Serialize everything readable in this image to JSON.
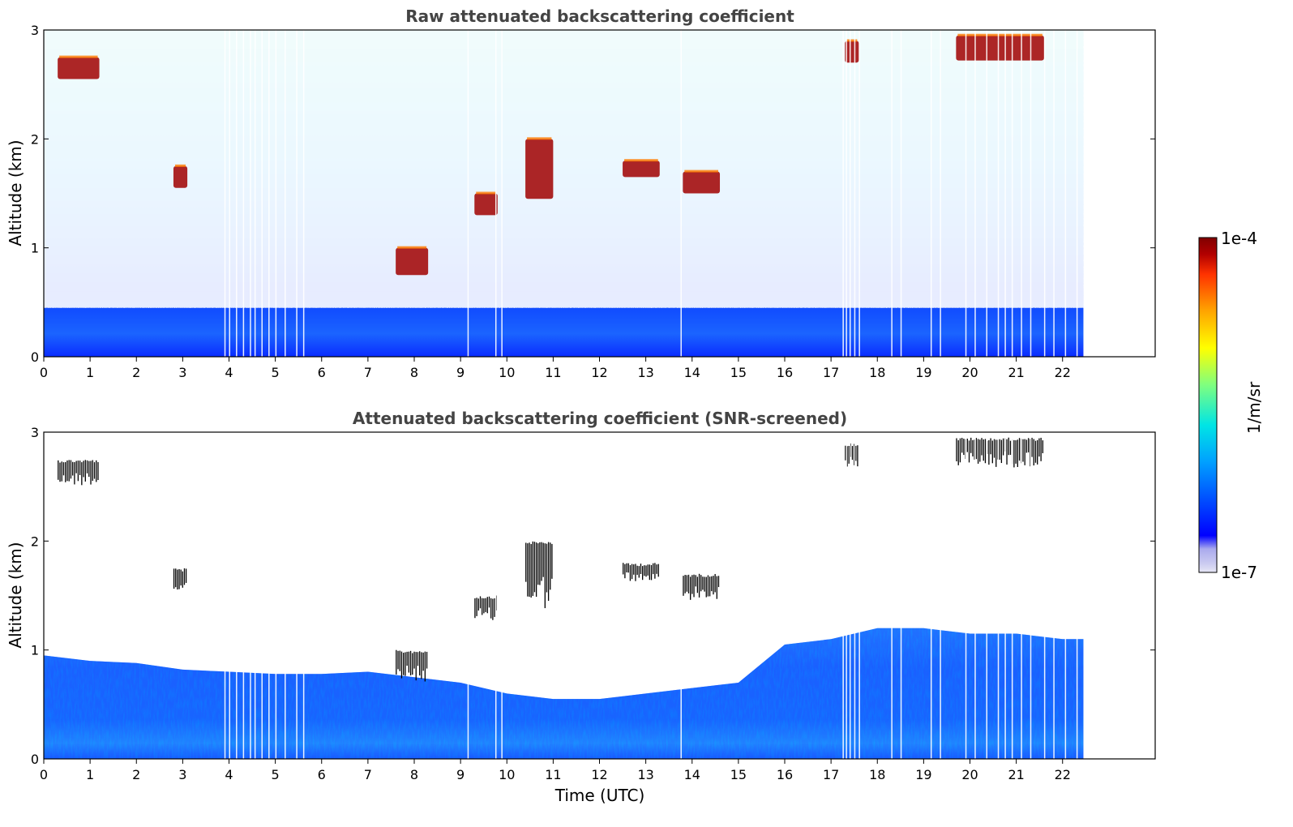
{
  "chart_data": [
    {
      "type": "heatmap",
      "title": "Raw attenuated backscattering coefficient",
      "xlabel": "",
      "ylabel": "Altitude (km)",
      "xlim": [
        0,
        24
      ],
      "ylim": [
        0,
        3
      ],
      "data_end_time": 22.45,
      "x_ticks": [
        "0",
        "1",
        "2",
        "3",
        "4",
        "5",
        "6",
        "7",
        "8",
        "9",
        "10",
        "11",
        "12",
        "13",
        "14",
        "15",
        "16",
        "17",
        "18",
        "19",
        "20",
        "21",
        "22"
      ],
      "y_ticks": [
        "0",
        "1",
        "2",
        "3"
      ],
      "cloud_layers": [
        {
          "t0": 0.3,
          "t1": 1.2,
          "z0": 2.55,
          "z1": 2.75
        },
        {
          "t0": 2.8,
          "t1": 3.1,
          "z0": 1.55,
          "z1": 1.75
        },
        {
          "t0": 7.6,
          "t1": 8.3,
          "z0": 0.75,
          "z1": 1.0
        },
        {
          "t0": 9.3,
          "t1": 9.8,
          "z0": 1.3,
          "z1": 1.5
        },
        {
          "t0": 10.4,
          "t1": 11.0,
          "z0": 1.45,
          "z1": 2.0
        },
        {
          "t0": 12.5,
          "t1": 13.3,
          "z0": 1.65,
          "z1": 1.8
        },
        {
          "t0": 13.8,
          "t1": 14.6,
          "z0": 1.5,
          "z1": 1.7
        },
        {
          "t0": 17.3,
          "t1": 17.6,
          "z0": 2.7,
          "z1": 2.9
        },
        {
          "t0": 19.7,
          "t1": 21.6,
          "z0": 2.72,
          "z1": 2.95
        }
      ]
    },
    {
      "type": "heatmap",
      "title": "Attenuated backscattering coefficient (SNR-screened)",
      "xlabel": "Time (UTC)",
      "ylabel": "Altitude (km)",
      "xlim": [
        0,
        24
      ],
      "ylim": [
        0,
        3
      ],
      "data_end_time": 22.45,
      "x_ticks": [
        "0",
        "1",
        "2",
        "3",
        "4",
        "5",
        "6",
        "7",
        "8",
        "9",
        "10",
        "11",
        "12",
        "13",
        "14",
        "15",
        "16",
        "17",
        "18",
        "19",
        "20",
        "21",
        "22"
      ],
      "y_ticks": [
        "0",
        "1",
        "2",
        "3"
      ],
      "boundary_layer_top_km": [
        {
          "t": 0.0,
          "z": 0.95
        },
        {
          "t": 1.0,
          "z": 0.9
        },
        {
          "t": 2.0,
          "z": 0.88
        },
        {
          "t": 3.0,
          "z": 0.82
        },
        {
          "t": 4.0,
          "z": 0.8
        },
        {
          "t": 5.0,
          "z": 0.78
        },
        {
          "t": 6.0,
          "z": 0.78
        },
        {
          "t": 7.0,
          "z": 0.8
        },
        {
          "t": 8.0,
          "z": 0.75
        },
        {
          "t": 9.0,
          "z": 0.7
        },
        {
          "t": 10.0,
          "z": 0.6
        },
        {
          "t": 11.0,
          "z": 0.55
        },
        {
          "t": 12.0,
          "z": 0.55
        },
        {
          "t": 13.0,
          "z": 0.6
        },
        {
          "t": 14.0,
          "z": 0.65
        },
        {
          "t": 15.0,
          "z": 0.7
        },
        {
          "t": 16.0,
          "z": 1.05
        },
        {
          "t": 17.0,
          "z": 1.1
        },
        {
          "t": 18.0,
          "z": 1.2
        },
        {
          "t": 19.0,
          "z": 1.2
        },
        {
          "t": 20.0,
          "z": 1.15
        },
        {
          "t": 21.0,
          "z": 1.15
        },
        {
          "t": 22.0,
          "z": 1.1
        }
      ]
    }
  ],
  "colorbar": {
    "label": "1/m/sr",
    "max_label": "1e-4",
    "min_label": "1e-7",
    "colors": [
      "#e6e6f5",
      "#c8c8f0",
      "#aaaaee",
      "#0000ff",
      "#0050ff",
      "#00a0ff",
      "#00e5e5",
      "#7fff7f",
      "#ffff00",
      "#ffa500",
      "#ff3300",
      "#b20000",
      "#800000"
    ]
  }
}
